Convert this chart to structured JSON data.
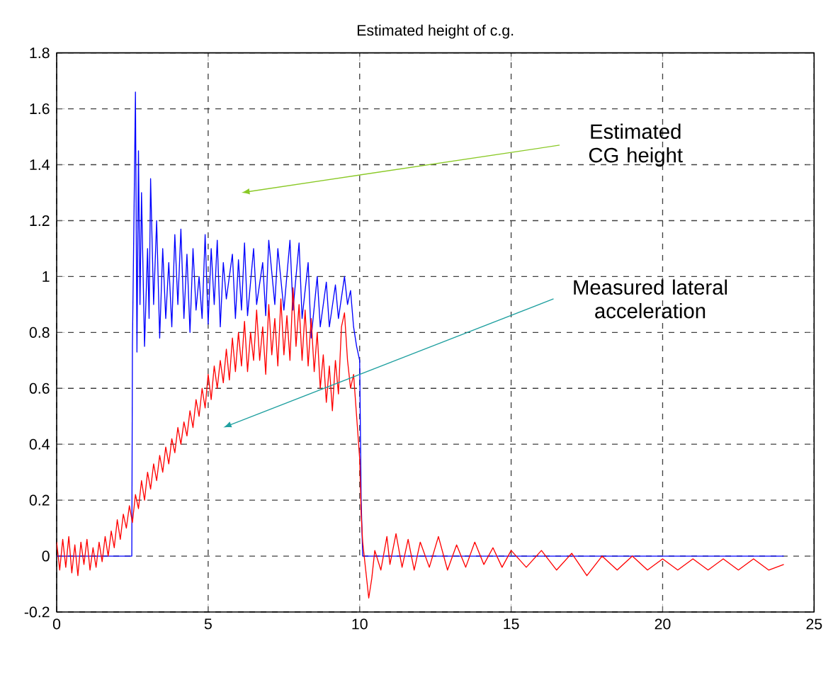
{
  "chart_data": {
    "type": "line",
    "title": "Estimated height of c.g.",
    "xlim": [
      0,
      25
    ],
    "ylim": [
      -0.2,
      1.8
    ],
    "xticks": [
      0,
      5,
      10,
      15,
      20,
      25
    ],
    "yticks": [
      -0.2,
      0,
      0.2,
      0.4,
      0.6,
      0.8,
      1,
      1.2,
      1.4,
      1.6,
      1.8
    ],
    "grid": true,
    "annotations": [
      "Estimated CG height",
      "Measured lateral acceleration"
    ],
    "series": [
      {
        "color": "#0000ff",
        "x": [
          0,
          2.48,
          2.5,
          2.55,
          2.6,
          2.65,
          2.7,
          2.75,
          2.8,
          2.9,
          3.0,
          3.05,
          3.1,
          3.2,
          3.3,
          3.4,
          3.5,
          3.6,
          3.7,
          3.8,
          3.9,
          4.0,
          4.1,
          4.2,
          4.3,
          4.4,
          4.5,
          4.6,
          4.7,
          4.8,
          4.9,
          5.0,
          5.1,
          5.2,
          5.3,
          5.4,
          5.5,
          5.6,
          5.8,
          5.9,
          6.0,
          6.1,
          6.2,
          6.3,
          6.5,
          6.6,
          6.8,
          6.9,
          7.0,
          7.2,
          7.3,
          7.5,
          7.7,
          7.8,
          8.0,
          8.1,
          8.3,
          8.4,
          8.6,
          8.7,
          8.9,
          9.0,
          9.2,
          9.3,
          9.5,
          9.6,
          9.7,
          9.8,
          9.9,
          10.0,
          10.05,
          10.1,
          24
        ],
        "values": [
          0,
          0,
          0.75,
          1.2,
          1.66,
          0.73,
          1.45,
          0.9,
          1.3,
          0.75,
          1.1,
          0.85,
          1.35,
          0.9,
          1.2,
          0.78,
          1.1,
          0.85,
          1.05,
          0.82,
          1.15,
          0.9,
          1.17,
          0.85,
          1.08,
          0.8,
          1.1,
          0.88,
          1.0,
          0.85,
          1.15,
          0.83,
          1.1,
          0.9,
          1.13,
          0.82,
          1.05,
          0.92,
          1.08,
          0.85,
          1.06,
          0.88,
          1.12,
          0.86,
          1.1,
          0.9,
          1.05,
          0.86,
          1.13,
          0.9,
          1.1,
          0.88,
          1.13,
          0.88,
          1.12,
          0.85,
          1.05,
          0.78,
          1.0,
          0.82,
          0.98,
          0.82,
          0.97,
          0.85,
          1.0,
          0.9,
          0.95,
          0.82,
          0.75,
          0.7,
          0.2,
          0,
          0
        ]
      },
      {
        "color": "#ff0000",
        "x": [
          0,
          0.1,
          0.2,
          0.3,
          0.4,
          0.5,
          0.6,
          0.7,
          0.8,
          0.9,
          1.0,
          1.1,
          1.2,
          1.3,
          1.4,
          1.5,
          1.6,
          1.7,
          1.8,
          1.9,
          2.0,
          2.1,
          2.2,
          2.3,
          2.4,
          2.5,
          2.6,
          2.7,
          2.8,
          2.9,
          3.0,
          3.1,
          3.2,
          3.3,
          3.4,
          3.5,
          3.6,
          3.7,
          3.8,
          3.9,
          4.0,
          4.1,
          4.2,
          4.3,
          4.4,
          4.5,
          4.6,
          4.7,
          4.8,
          4.9,
          5.0,
          5.1,
          5.2,
          5.3,
          5.4,
          5.5,
          5.6,
          5.7,
          5.8,
          5.9,
          6.0,
          6.1,
          6.2,
          6.3,
          6.4,
          6.5,
          6.6,
          6.7,
          6.8,
          6.9,
          7.0,
          7.1,
          7.2,
          7.3,
          7.4,
          7.5,
          7.6,
          7.7,
          7.8,
          7.9,
          8.0,
          8.1,
          8.2,
          8.3,
          8.4,
          8.5,
          8.6,
          8.7,
          8.8,
          8.9,
          9.0,
          9.1,
          9.2,
          9.3,
          9.4,
          9.5,
          9.6,
          9.7,
          9.8,
          9.9,
          10.0,
          10.05,
          10.1,
          10.2,
          10.3,
          10.4,
          10.5,
          10.7,
          10.9,
          11.0,
          11.2,
          11.4,
          11.6,
          11.8,
          12.0,
          12.3,
          12.6,
          12.9,
          13.2,
          13.5,
          13.8,
          14.1,
          14.4,
          14.7,
          15.0,
          15.5,
          16.0,
          16.5,
          17.0,
          17.5,
          18.0,
          18.5,
          19.0,
          19.5,
          20.0,
          20.5,
          21.0,
          21.5,
          22.0,
          22.5,
          23.0,
          23.5,
          24.0
        ],
        "values": [
          0.05,
          -0.05,
          0.06,
          -0.04,
          0.07,
          -0.06,
          0.04,
          -0.07,
          0.05,
          -0.03,
          0.06,
          -0.05,
          0.03,
          -0.04,
          0.05,
          -0.02,
          0.07,
          0.0,
          0.09,
          0.03,
          0.13,
          0.06,
          0.15,
          0.1,
          0.18,
          0.12,
          0.22,
          0.17,
          0.27,
          0.2,
          0.3,
          0.24,
          0.33,
          0.27,
          0.36,
          0.3,
          0.39,
          0.33,
          0.42,
          0.37,
          0.46,
          0.4,
          0.48,
          0.43,
          0.52,
          0.46,
          0.56,
          0.5,
          0.6,
          0.53,
          0.65,
          0.56,
          0.68,
          0.6,
          0.7,
          0.62,
          0.74,
          0.63,
          0.78,
          0.66,
          0.8,
          0.68,
          0.84,
          0.66,
          0.8,
          0.7,
          0.88,
          0.7,
          0.82,
          0.65,
          0.9,
          0.72,
          0.85,
          0.68,
          0.92,
          0.72,
          0.86,
          0.7,
          0.96,
          0.75,
          0.9,
          0.7,
          0.88,
          0.68,
          0.85,
          0.66,
          0.8,
          0.6,
          0.72,
          0.55,
          0.68,
          0.52,
          0.7,
          0.58,
          0.82,
          0.87,
          0.7,
          0.6,
          0.65,
          0.5,
          0.35,
          0.15,
          0.05,
          -0.05,
          -0.15,
          -0.08,
          0.02,
          -0.05,
          0.07,
          -0.03,
          0.08,
          -0.04,
          0.06,
          -0.05,
          0.05,
          -0.04,
          0.07,
          -0.05,
          0.04,
          -0.04,
          0.05,
          -0.03,
          0.03,
          -0.04,
          0.02,
          -0.04,
          0.02,
          -0.05,
          0.01,
          -0.07,
          0.0,
          -0.05,
          0.0,
          -0.05,
          -0.01,
          -0.05,
          -0.01,
          -0.05,
          -0.01,
          -0.05,
          -0.01,
          -0.05,
          -0.03
        ]
      }
    ]
  }
}
